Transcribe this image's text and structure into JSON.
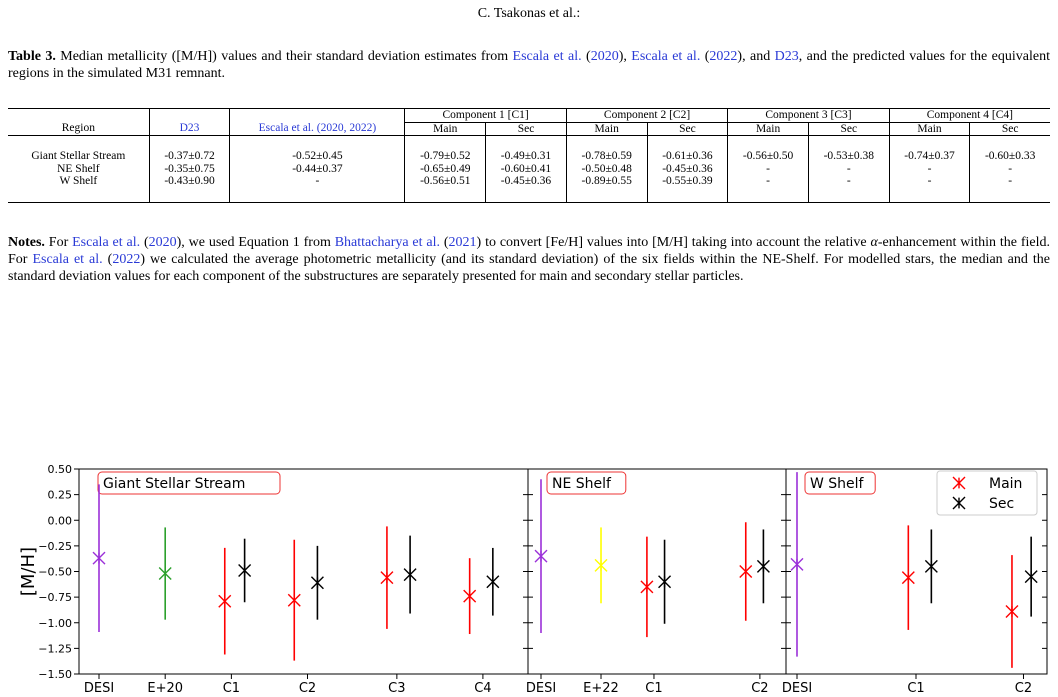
{
  "running_header": "C. Tsakonas  et al.:",
  "caption": {
    "label": "Table 3.",
    "t1": " Median metallicity ([M/H]) values and their standard deviation estimates from ",
    "ref1": "Escala et al.",
    "t2": " (",
    "ref1_year": "2020",
    "t3": "), ",
    "ref2": "Escala et al.",
    "t4": " (",
    "ref2_year": "2022",
    "t5": "), and ",
    "ref3": "D23",
    "t6": ", and the predicted values for the equivalent regions in the simulated M31 remnant."
  },
  "table": {
    "components": [
      "Component 1 [C1]",
      "Component 2 [C2]",
      "Component 3 [C3]",
      "Component 4 [C4]"
    ],
    "col_region": "Region",
    "col_d23": "D23",
    "col_escala": "Escala et al. (2020, 2022)",
    "sub_main": "Main",
    "sub_sec": "Sec",
    "rows": [
      {
        "region": "Giant Stellar Stream",
        "d23": "-0.37±0.72",
        "escala": "-0.52±0.45",
        "c1m": "-0.79±0.52",
        "c1s": "-0.49±0.31",
        "c2m": "-0.78±0.59",
        "c2s": "-0.61±0.36",
        "c3m": "-0.56±0.50",
        "c3s": "-0.53±0.38",
        "c4m": "-0.74±0.37",
        "c4s": "-0.60±0.33"
      },
      {
        "region": "NE Shelf",
        "d23": "-0.35±0.75",
        "escala": "-0.44±0.37",
        "c1m": "-0.65±0.49",
        "c1s": "-0.60±0.41",
        "c2m": "-0.50±0.48",
        "c2s": "-0.45±0.36",
        "c3m": "-",
        "c3s": "-",
        "c4m": "-",
        "c4s": "-"
      },
      {
        "region": "W Shelf",
        "d23": "-0.43±0.90",
        "escala": "-",
        "c1m": "-0.56±0.51",
        "c1s": "-0.45±0.36",
        "c2m": "-0.89±0.55",
        "c2s": "-0.55±0.39",
        "c3m": "-",
        "c3s": "-",
        "c4m": "-",
        "c4s": "-"
      }
    ]
  },
  "notes": {
    "label": "Notes.",
    "t1": " For ",
    "ref1": "Escala et al.",
    "t2": " (",
    "ref1_year": "2020",
    "t3": "), we used Equation 1 from ",
    "ref2": "Bhattacharya et al.",
    "t4": " (",
    "ref2_year": "2021",
    "t5": ") to convert [Fe/H] values into [M/H] taking into account the relative ",
    "alpha": "α",
    "t6": "-enhancement within the field. For ",
    "ref3": "Escala et al.",
    "t7": " (",
    "ref3_year": "2022",
    "t8": ") we calculated the average photometric metallicity (and its standard deviation) of the six fields within the NE-Shelf. For modelled stars, the median and the standard deviation values for each component of the substructures are separately presented for main and secondary stellar particles."
  },
  "chart_data": {
    "type": "scatter",
    "ylabel": "[M/H]",
    "ylim": [
      -1.5,
      0.5
    ],
    "yticks": [
      "0.50",
      "0.25",
      "0.00",
      "−0.25",
      "−0.50",
      "−0.75",
      "−1.00",
      "−1.25",
      "−1.50"
    ],
    "ytick_values": [
      0.5,
      0.25,
      0.0,
      -0.25,
      -0.5,
      -0.75,
      -1.0,
      -1.25,
      -1.5
    ],
    "legend": [
      {
        "label": "Main",
        "color": "#ff0000"
      },
      {
        "label": "Sec",
        "color": "#000000"
      }
    ],
    "legend_position": "top-right",
    "panels": [
      {
        "title": "Giant Stellar Stream",
        "xrange": [
          0,
          6.3
        ],
        "xticks": [
          {
            "label": "DESI",
            "x": 0
          },
          {
            "label": "E+20",
            "x": 1
          },
          {
            "label": "C1",
            "x": 2
          },
          {
            "label": "C2",
            "x": 3.15
          },
          {
            "label": "C3",
            "x": 4.5
          },
          {
            "label": "C4",
            "x": 5.8
          }
        ],
        "points": [
          {
            "x": 0.0,
            "y": -0.37,
            "err": 0.72,
            "color": "#9b30d9"
          },
          {
            "x": 1.0,
            "y": -0.52,
            "err": 0.45,
            "color": "#2ca02c"
          },
          {
            "x": 1.9,
            "y": -0.79,
            "err": 0.52,
            "color": "#ff0000"
          },
          {
            "x": 2.2,
            "y": -0.49,
            "err": 0.31,
            "color": "#000000"
          },
          {
            "x": 2.95,
            "y": -0.78,
            "err": 0.59,
            "color": "#ff0000"
          },
          {
            "x": 3.3,
            "y": -0.61,
            "err": 0.36,
            "color": "#000000"
          },
          {
            "x": 4.35,
            "y": -0.56,
            "err": 0.5,
            "color": "#ff0000"
          },
          {
            "x": 4.7,
            "y": -0.53,
            "err": 0.38,
            "color": "#000000"
          },
          {
            "x": 5.6,
            "y": -0.74,
            "err": 0.37,
            "color": "#ff0000"
          },
          {
            "x": 5.95,
            "y": -0.6,
            "err": 0.33,
            "color": "#000000"
          }
        ]
      },
      {
        "title": "NE Shelf",
        "xrange": [
          0,
          3.3
        ],
        "xticks": [
          {
            "label": "DESI",
            "x": 0
          },
          {
            "label": "E+22",
            "x": 0.85
          },
          {
            "label": "C1",
            "x": 1.6
          },
          {
            "label": "C2",
            "x": 3.1
          }
        ],
        "points": [
          {
            "x": 0.0,
            "y": -0.35,
            "err": 0.75,
            "color": "#9b30d9"
          },
          {
            "x": 0.85,
            "y": -0.44,
            "err": 0.37,
            "color": "#ffff00"
          },
          {
            "x": 1.5,
            "y": -0.65,
            "err": 0.49,
            "color": "#ff0000"
          },
          {
            "x": 1.75,
            "y": -0.6,
            "err": 0.41,
            "color": "#000000"
          },
          {
            "x": 2.9,
            "y": -0.5,
            "err": 0.48,
            "color": "#ff0000"
          },
          {
            "x": 3.15,
            "y": -0.45,
            "err": 0.36,
            "color": "#000000"
          }
        ]
      },
      {
        "title": "W Shelf",
        "xrange": [
          0,
          3.1
        ],
        "xticks": [
          {
            "label": "DESI",
            "x": 0
          },
          {
            "label": "C1",
            "x": 1.55
          },
          {
            "label": "C2",
            "x": 2.95
          }
        ],
        "points": [
          {
            "x": 0.0,
            "y": -0.43,
            "err": 0.9,
            "color": "#9b30d9"
          },
          {
            "x": 1.45,
            "y": -0.56,
            "err": 0.51,
            "color": "#ff0000"
          },
          {
            "x": 1.75,
            "y": -0.45,
            "err": 0.36,
            "color": "#000000"
          },
          {
            "x": 2.8,
            "y": -0.89,
            "err": 0.55,
            "color": "#ff0000"
          },
          {
            "x": 3.05,
            "y": -0.55,
            "err": 0.39,
            "color": "#000000"
          }
        ]
      }
    ]
  }
}
